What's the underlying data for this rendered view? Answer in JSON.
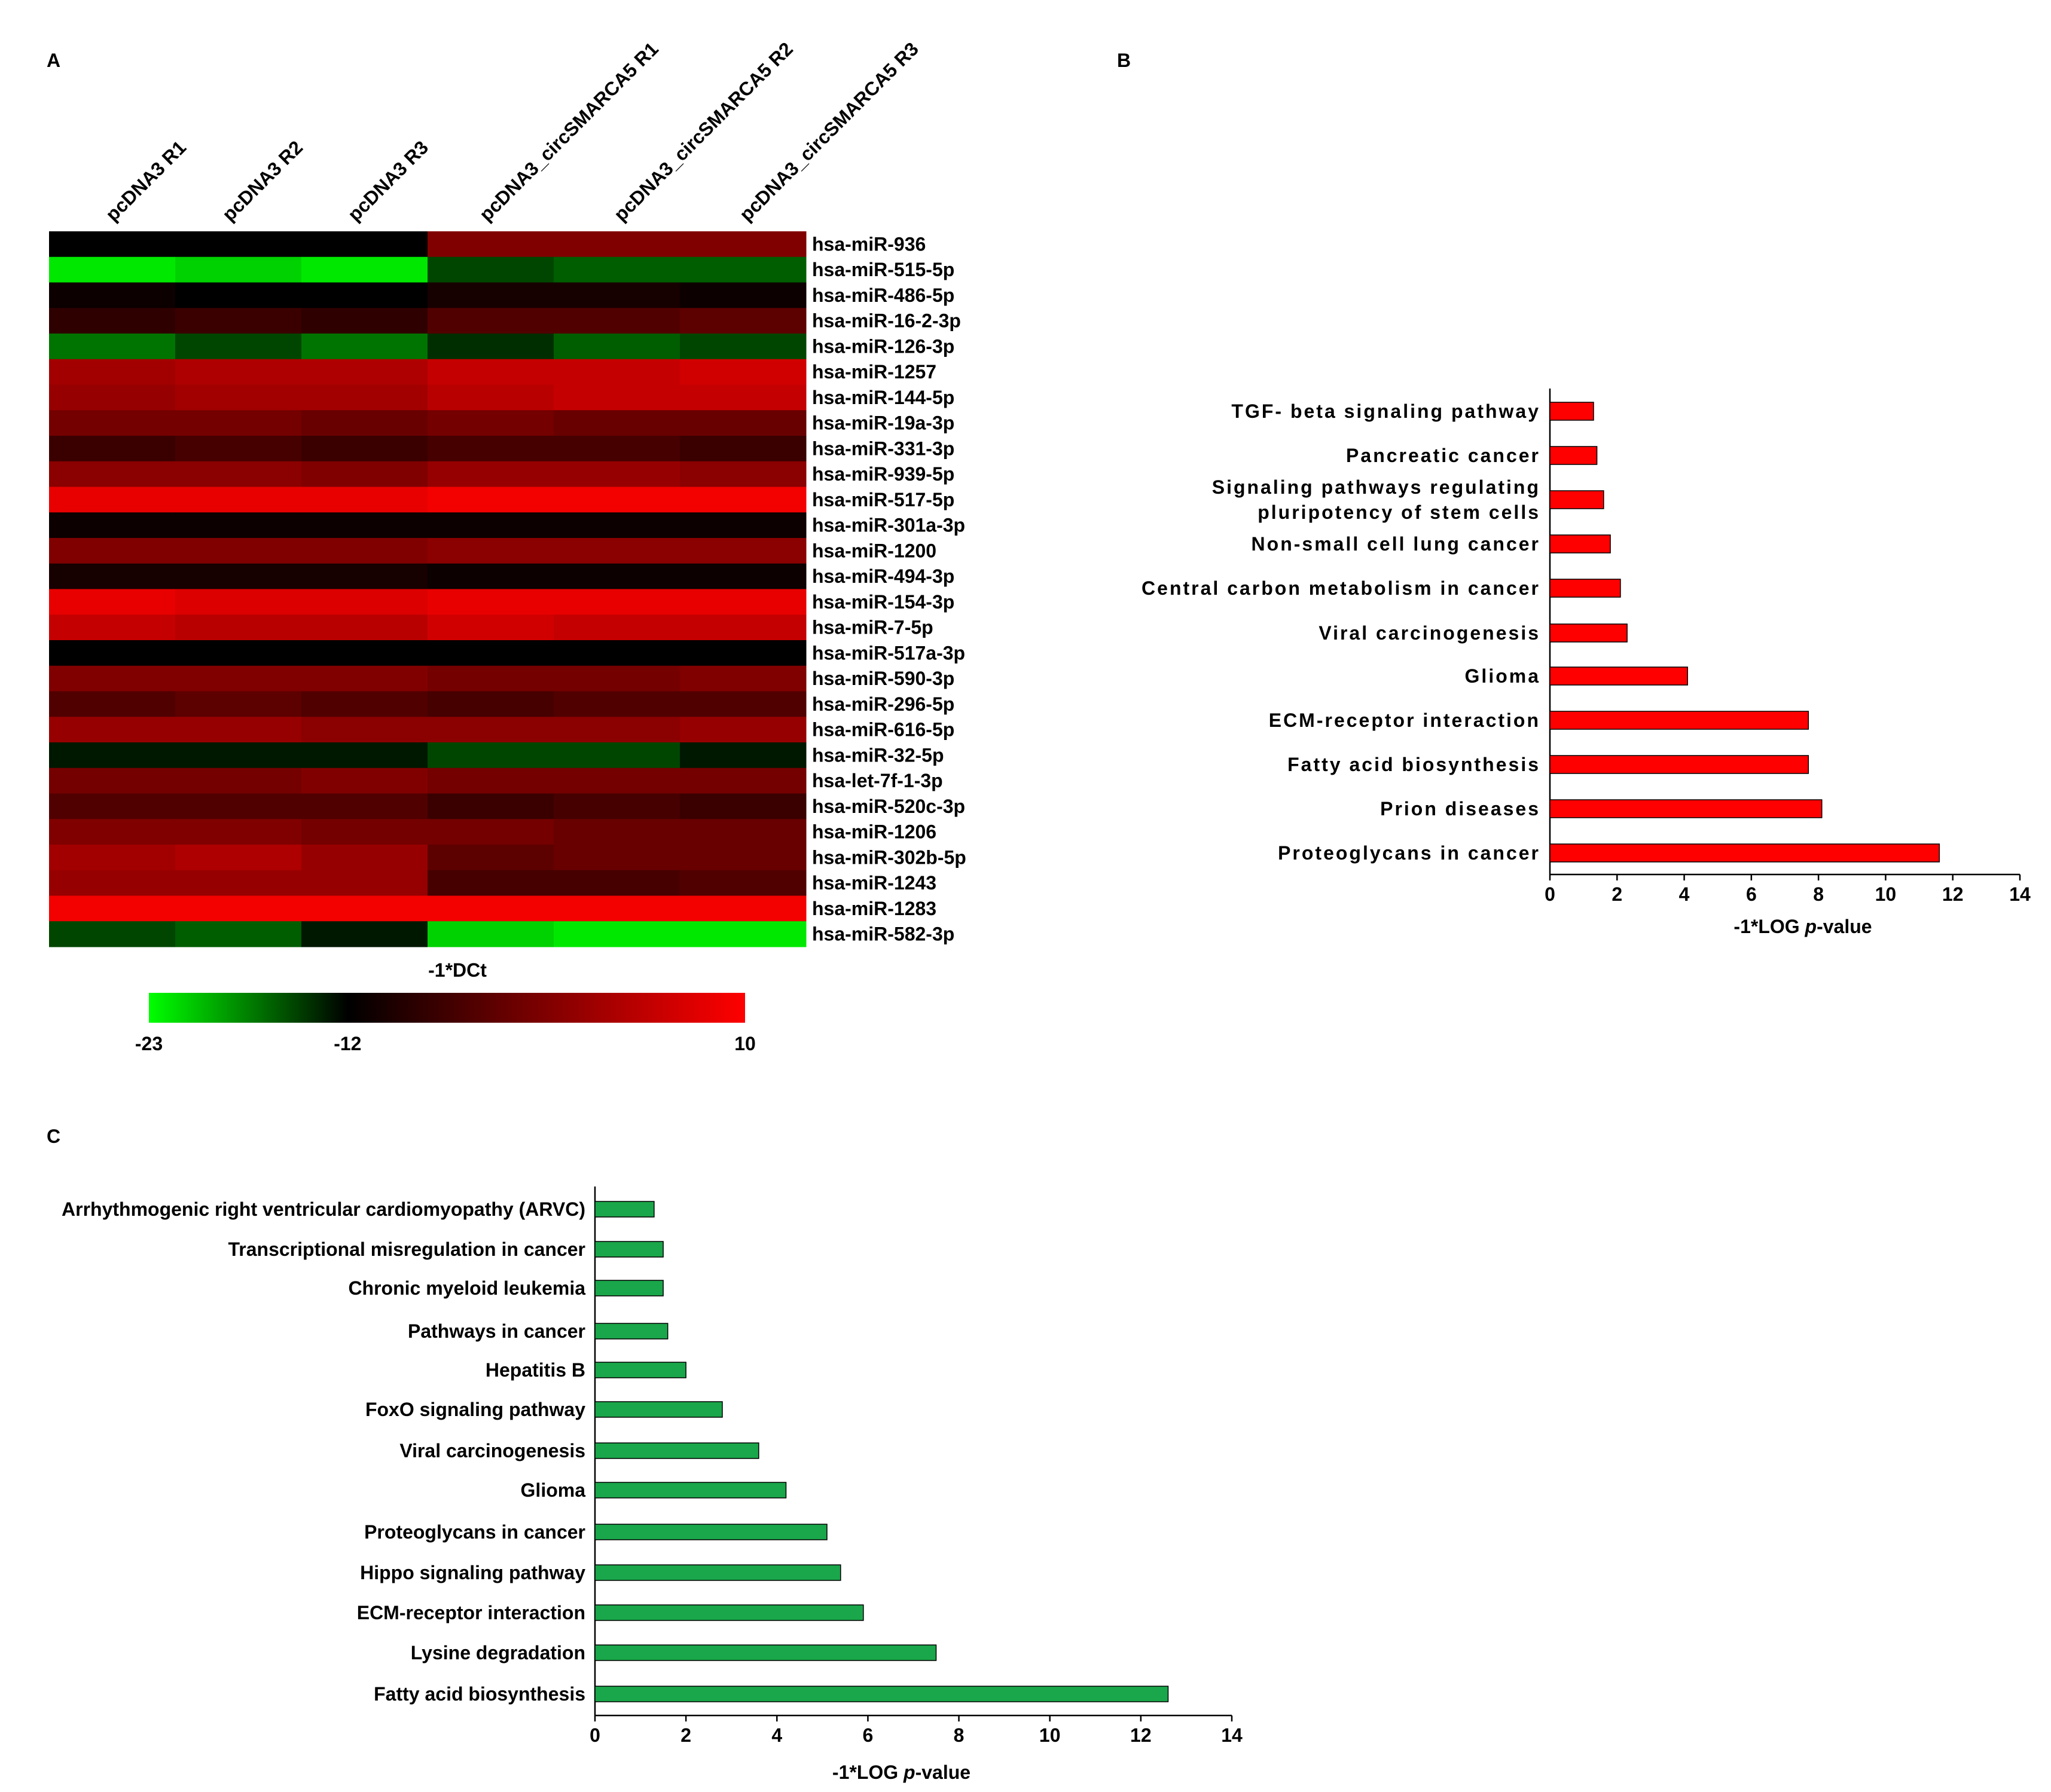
{
  "chart_data": [
    {
      "panel": "A",
      "type": "heatmap",
      "columns": [
        "pcDNA3 R1",
        "pcDNA3 R2",
        "pcDNA3 R3",
        "pcDNA3_circSMARCA5 R1",
        "pcDNA3_circSMARCA5 R2",
        "pcDNA3_circSMARCA5 R3"
      ],
      "rows": [
        "hsa-miR-936",
        "hsa-miR-515-5p",
        "hsa-miR-486-5p",
        "hsa-miR-16-2-3p",
        "hsa-miR-126-3p",
        "hsa-miR-1257",
        "hsa-miR-144-5p",
        "hsa-miR-19a-3p",
        "hsa-miR-331-3p",
        "hsa-miR-939-5p",
        "hsa-miR-517-5p",
        "hsa-miR-301a-3p",
        "hsa-miR-1200",
        "hsa-miR-494-3p",
        "hsa-miR-154-3p",
        "hsa-miR-7-5p",
        "hsa-miR-517a-3p",
        "hsa-miR-590-3p",
        "hsa-miR-296-5p",
        "hsa-miR-616-5p",
        "hsa-miR-32-5p",
        "hsa-let-7f-1-3p",
        "hsa-miR-520c-3p",
        "hsa-miR-1206",
        "hsa-miR-302b-5p",
        "hsa-miR-1243",
        "hsa-miR-1283",
        "hsa-miR-582-3p"
      ],
      "values": [
        [
          -12,
          -12,
          -12,
          -1,
          -1,
          -1
        ],
        [
          -22,
          -21,
          -22,
          -15,
          -16,
          -16
        ],
        [
          -11,
          -12,
          -12,
          -10,
          -10,
          -11
        ],
        [
          -8,
          -7,
          -8,
          -5,
          -5,
          -4
        ],
        [
          -17,
          -15,
          -17,
          -14,
          -16,
          -15
        ],
        [
          2,
          3,
          3,
          5,
          5,
          6
        ],
        [
          1,
          2,
          2,
          4,
          5,
          5
        ],
        [
          -2,
          -2,
          -3,
          -2,
          -3,
          -3
        ],
        [
          -7,
          -6,
          -7,
          -6,
          -6,
          -7
        ],
        [
          0,
          0,
          -1,
          1,
          1,
          0
        ],
        [
          8,
          8,
          8,
          9,
          9,
          9
        ],
        [
          -11,
          -11,
          -11,
          -11,
          -11,
          -11
        ],
        [
          -1,
          -1,
          -1,
          0,
          0,
          0
        ],
        [
          -10,
          -10,
          -10,
          -11,
          -11,
          -11
        ],
        [
          8,
          7,
          7,
          8,
          8,
          8
        ],
        [
          5,
          4,
          4,
          6,
          5,
          5
        ],
        [
          -12,
          -12,
          -12,
          -12,
          -12,
          -12
        ],
        [
          -1,
          -1,
          -1,
          -2,
          -2,
          -1
        ],
        [
          -5,
          -4,
          -5,
          -6,
          -5,
          -5
        ],
        [
          1,
          1,
          0,
          0,
          0,
          1
        ],
        [
          -13,
          -13,
          -13,
          -15,
          -15,
          -13
        ],
        [
          -2,
          -2,
          -1,
          -2,
          -2,
          -2
        ],
        [
          -5,
          -5,
          -5,
          -7,
          -6,
          -7
        ],
        [
          -1,
          -1,
          -2,
          -2,
          -3,
          -3
        ],
        [
          2,
          3,
          1,
          -4,
          -3,
          -3
        ],
        [
          1,
          1,
          1,
          -6,
          -6,
          -5
        ],
        [
          9,
          9,
          9,
          9,
          9,
          9
        ],
        [
          -15,
          -16,
          -13,
          -21,
          -22,
          -22
        ]
      ],
      "colorbar_label": "-1*DCt",
      "colorbar_ticks": [
        "-23",
        "-12",
        "10"
      ],
      "color_min": -23,
      "color_mid": -12,
      "color_max": 10,
      "colors": {
        "low": "#00ff00",
        "mid": "#000000",
        "high": "#ff0000"
      }
    },
    {
      "panel": "B",
      "type": "bar",
      "orientation": "horizontal",
      "categories": [
        [
          "TGF- beta signaling pathway"
        ],
        [
          "Pancreatic cancer"
        ],
        [
          "Signaling pathways regulating",
          "pluripotency of stem cells"
        ],
        [
          "Non-small cell lung cancer"
        ],
        [
          "Central carbon metabolism in cancer"
        ],
        [
          "Viral carcinogenesis"
        ],
        [
          "Glioma"
        ],
        [
          "ECM-receptor interaction"
        ],
        [
          "Fatty acid biosynthesis"
        ],
        [
          "Prion diseases"
        ],
        [
          "Proteoglycans in cancer"
        ]
      ],
      "values": [
        1.3,
        1.4,
        1.6,
        1.8,
        2.1,
        2.3,
        4.1,
        7.7,
        7.7,
        8.1,
        11.6
      ],
      "xlabel_prefix": "-1*LOG ",
      "xlabel_italic": "p",
      "xlabel_suffix": "-value",
      "xlim": [
        0,
        14
      ],
      "xticks": [
        0,
        2,
        4,
        6,
        8,
        10,
        12,
        14
      ],
      "bar_color": "#ff0000"
    },
    {
      "panel": "C",
      "type": "bar",
      "orientation": "horizontal",
      "categories": [
        [
          "Arrhythmogenic right ventricular cardiomyopathy (ARVC)"
        ],
        [
          "Transcriptional misregulation in cancer"
        ],
        [
          "Chronic myeloid leukemia"
        ],
        [
          "Pathways in cancer"
        ],
        [
          "Hepatitis B"
        ],
        [
          "FoxO signaling pathway"
        ],
        [
          "Viral carcinogenesis"
        ],
        [
          "Glioma"
        ],
        [
          "Proteoglycans in cancer"
        ],
        [
          "Hippo signaling pathway"
        ],
        [
          "ECM-receptor interaction"
        ],
        [
          "Lysine degradation"
        ],
        [
          "Fatty acid biosynthesis"
        ]
      ],
      "values": [
        1.3,
        1.5,
        1.5,
        1.6,
        2.0,
        2.8,
        3.6,
        4.2,
        5.1,
        5.4,
        5.9,
        7.5,
        12.6
      ],
      "xlabel_prefix": "-1*LOG ",
      "xlabel_italic": "p",
      "xlabel_suffix": "-value",
      "xlim": [
        0,
        14
      ],
      "xticks": [
        0,
        2,
        4,
        6,
        8,
        10,
        12,
        14
      ],
      "bar_color": "#1aa64a"
    }
  ],
  "panel_labels": {
    "a": "A",
    "b": "B",
    "c": "C"
  }
}
